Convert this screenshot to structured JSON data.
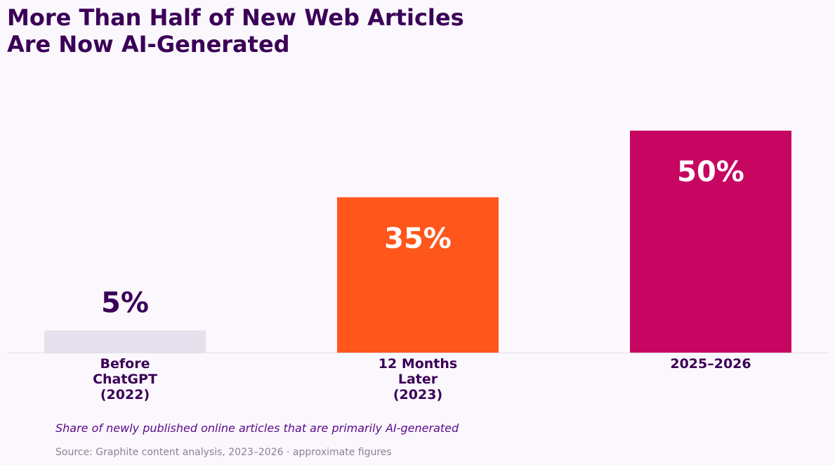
{
  "chart_data": {
    "type": "bar",
    "title_lines": [
      "More Than Half of New Web Articles",
      "Are Now AI-Generated"
    ],
    "categories": [
      [
        "Before",
        "ChatGPT",
        "(2022)"
      ],
      [
        "12 Months",
        "Later",
        "(2023)"
      ],
      [
        "2025–2026"
      ]
    ],
    "values": [
      5,
      35,
      50
    ],
    "value_labels": [
      "5%",
      "35%",
      "50%"
    ],
    "colors": [
      "#e6e1ec",
      "#ff561c",
      "#c70662"
    ],
    "value_label_colors": [
      "#3b0057",
      "#ffffff",
      "#ffffff"
    ],
    "value_label_inside": [
      false,
      true,
      true
    ],
    "ylim": [
      0,
      60
    ],
    "grid": false,
    "subtitle": "Share of newly published online articles that are primarily AI-generated",
    "source": "Source: Graphite content analysis, 2023–2026 · approximate figures"
  },
  "colors": {
    "background": "#fbf8fd",
    "text": "#3b0057",
    "baseline": "#e3dde8"
  }
}
